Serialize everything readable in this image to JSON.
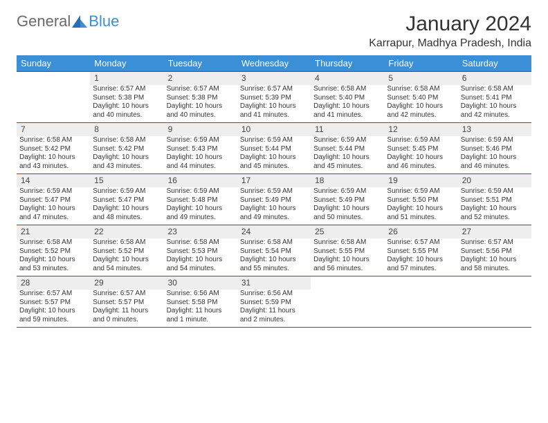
{
  "logo": {
    "text1": "General",
    "text2": "Blue"
  },
  "title": "January 2024",
  "location": "Karrapur, Madhya Pradesh, India",
  "colors": {
    "header_bg": "#3a8fd6",
    "daynum_bg": "#eeeeee",
    "border": "#2b5a8a",
    "text": "#333333"
  },
  "weekdays": [
    "Sunday",
    "Monday",
    "Tuesday",
    "Wednesday",
    "Thursday",
    "Friday",
    "Saturday"
  ],
  "weeks": [
    {
      "nums": [
        "",
        "1",
        "2",
        "3",
        "4",
        "5",
        "6"
      ],
      "cells": [
        {
          "sunrise": "",
          "sunset": "",
          "daylight1": "",
          "daylight2": ""
        },
        {
          "sunrise": "Sunrise: 6:57 AM",
          "sunset": "Sunset: 5:38 PM",
          "daylight1": "Daylight: 10 hours",
          "daylight2": "and 40 minutes."
        },
        {
          "sunrise": "Sunrise: 6:57 AM",
          "sunset": "Sunset: 5:38 PM",
          "daylight1": "Daylight: 10 hours",
          "daylight2": "and 40 minutes."
        },
        {
          "sunrise": "Sunrise: 6:57 AM",
          "sunset": "Sunset: 5:39 PM",
          "daylight1": "Daylight: 10 hours",
          "daylight2": "and 41 minutes."
        },
        {
          "sunrise": "Sunrise: 6:58 AM",
          "sunset": "Sunset: 5:40 PM",
          "daylight1": "Daylight: 10 hours",
          "daylight2": "and 41 minutes."
        },
        {
          "sunrise": "Sunrise: 6:58 AM",
          "sunset": "Sunset: 5:40 PM",
          "daylight1": "Daylight: 10 hours",
          "daylight2": "and 42 minutes."
        },
        {
          "sunrise": "Sunrise: 6:58 AM",
          "sunset": "Sunset: 5:41 PM",
          "daylight1": "Daylight: 10 hours",
          "daylight2": "and 42 minutes."
        }
      ]
    },
    {
      "nums": [
        "7",
        "8",
        "9",
        "10",
        "11",
        "12",
        "13"
      ],
      "cells": [
        {
          "sunrise": "Sunrise: 6:58 AM",
          "sunset": "Sunset: 5:42 PM",
          "daylight1": "Daylight: 10 hours",
          "daylight2": "and 43 minutes."
        },
        {
          "sunrise": "Sunrise: 6:58 AM",
          "sunset": "Sunset: 5:42 PM",
          "daylight1": "Daylight: 10 hours",
          "daylight2": "and 43 minutes."
        },
        {
          "sunrise": "Sunrise: 6:59 AM",
          "sunset": "Sunset: 5:43 PM",
          "daylight1": "Daylight: 10 hours",
          "daylight2": "and 44 minutes."
        },
        {
          "sunrise": "Sunrise: 6:59 AM",
          "sunset": "Sunset: 5:44 PM",
          "daylight1": "Daylight: 10 hours",
          "daylight2": "and 45 minutes."
        },
        {
          "sunrise": "Sunrise: 6:59 AM",
          "sunset": "Sunset: 5:44 PM",
          "daylight1": "Daylight: 10 hours",
          "daylight2": "and 45 minutes."
        },
        {
          "sunrise": "Sunrise: 6:59 AM",
          "sunset": "Sunset: 5:45 PM",
          "daylight1": "Daylight: 10 hours",
          "daylight2": "and 46 minutes."
        },
        {
          "sunrise": "Sunrise: 6:59 AM",
          "sunset": "Sunset: 5:46 PM",
          "daylight1": "Daylight: 10 hours",
          "daylight2": "and 46 minutes."
        }
      ]
    },
    {
      "nums": [
        "14",
        "15",
        "16",
        "17",
        "18",
        "19",
        "20"
      ],
      "cells": [
        {
          "sunrise": "Sunrise: 6:59 AM",
          "sunset": "Sunset: 5:47 PM",
          "daylight1": "Daylight: 10 hours",
          "daylight2": "and 47 minutes."
        },
        {
          "sunrise": "Sunrise: 6:59 AM",
          "sunset": "Sunset: 5:47 PM",
          "daylight1": "Daylight: 10 hours",
          "daylight2": "and 48 minutes."
        },
        {
          "sunrise": "Sunrise: 6:59 AM",
          "sunset": "Sunset: 5:48 PM",
          "daylight1": "Daylight: 10 hours",
          "daylight2": "and 49 minutes."
        },
        {
          "sunrise": "Sunrise: 6:59 AM",
          "sunset": "Sunset: 5:49 PM",
          "daylight1": "Daylight: 10 hours",
          "daylight2": "and 49 minutes."
        },
        {
          "sunrise": "Sunrise: 6:59 AM",
          "sunset": "Sunset: 5:49 PM",
          "daylight1": "Daylight: 10 hours",
          "daylight2": "and 50 minutes."
        },
        {
          "sunrise": "Sunrise: 6:59 AM",
          "sunset": "Sunset: 5:50 PM",
          "daylight1": "Daylight: 10 hours",
          "daylight2": "and 51 minutes."
        },
        {
          "sunrise": "Sunrise: 6:59 AM",
          "sunset": "Sunset: 5:51 PM",
          "daylight1": "Daylight: 10 hours",
          "daylight2": "and 52 minutes."
        }
      ]
    },
    {
      "nums": [
        "21",
        "22",
        "23",
        "24",
        "25",
        "26",
        "27"
      ],
      "cells": [
        {
          "sunrise": "Sunrise: 6:58 AM",
          "sunset": "Sunset: 5:52 PM",
          "daylight1": "Daylight: 10 hours",
          "daylight2": "and 53 minutes."
        },
        {
          "sunrise": "Sunrise: 6:58 AM",
          "sunset": "Sunset: 5:52 PM",
          "daylight1": "Daylight: 10 hours",
          "daylight2": "and 54 minutes."
        },
        {
          "sunrise": "Sunrise: 6:58 AM",
          "sunset": "Sunset: 5:53 PM",
          "daylight1": "Daylight: 10 hours",
          "daylight2": "and 54 minutes."
        },
        {
          "sunrise": "Sunrise: 6:58 AM",
          "sunset": "Sunset: 5:54 PM",
          "daylight1": "Daylight: 10 hours",
          "daylight2": "and 55 minutes."
        },
        {
          "sunrise": "Sunrise: 6:58 AM",
          "sunset": "Sunset: 5:55 PM",
          "daylight1": "Daylight: 10 hours",
          "daylight2": "and 56 minutes."
        },
        {
          "sunrise": "Sunrise: 6:57 AM",
          "sunset": "Sunset: 5:55 PM",
          "daylight1": "Daylight: 10 hours",
          "daylight2": "and 57 minutes."
        },
        {
          "sunrise": "Sunrise: 6:57 AM",
          "sunset": "Sunset: 5:56 PM",
          "daylight1": "Daylight: 10 hours",
          "daylight2": "and 58 minutes."
        }
      ]
    },
    {
      "nums": [
        "28",
        "29",
        "30",
        "31",
        "",
        "",
        ""
      ],
      "cells": [
        {
          "sunrise": "Sunrise: 6:57 AM",
          "sunset": "Sunset: 5:57 PM",
          "daylight1": "Daylight: 10 hours",
          "daylight2": "and 59 minutes."
        },
        {
          "sunrise": "Sunrise: 6:57 AM",
          "sunset": "Sunset: 5:57 PM",
          "daylight1": "Daylight: 11 hours",
          "daylight2": "and 0 minutes."
        },
        {
          "sunrise": "Sunrise: 6:56 AM",
          "sunset": "Sunset: 5:58 PM",
          "daylight1": "Daylight: 11 hours",
          "daylight2": "and 1 minute."
        },
        {
          "sunrise": "Sunrise: 6:56 AM",
          "sunset": "Sunset: 5:59 PM",
          "daylight1": "Daylight: 11 hours",
          "daylight2": "and 2 minutes."
        },
        {
          "sunrise": "",
          "sunset": "",
          "daylight1": "",
          "daylight2": ""
        },
        {
          "sunrise": "",
          "sunset": "",
          "daylight1": "",
          "daylight2": ""
        },
        {
          "sunrise": "",
          "sunset": "",
          "daylight1": "",
          "daylight2": ""
        }
      ]
    }
  ]
}
